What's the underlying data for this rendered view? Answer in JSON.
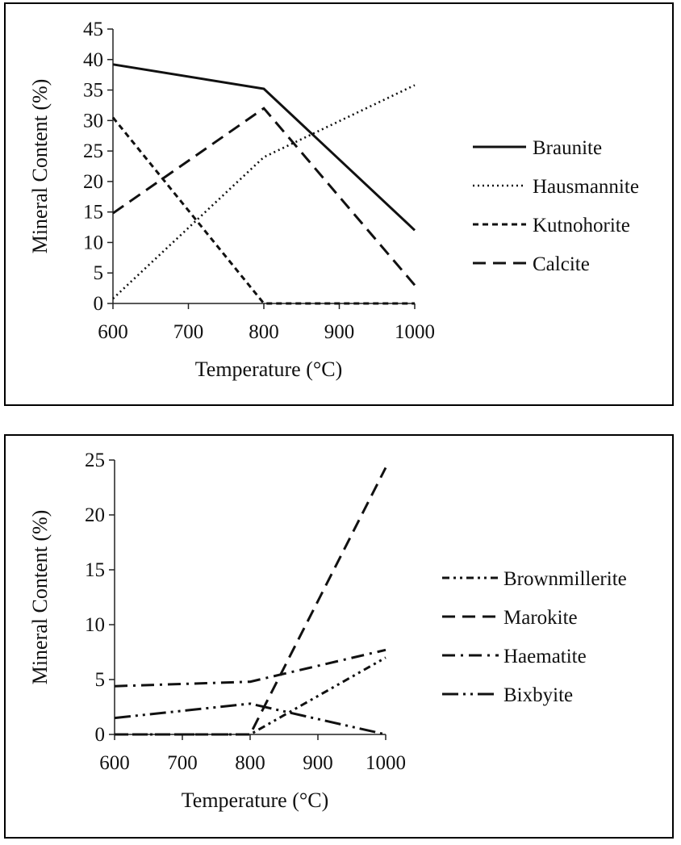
{
  "chart_data": [
    {
      "type": "line",
      "xlabel": "Temperature (°C)",
      "ylabel": "Mineral Content (%)",
      "xlim": [
        600,
        1000
      ],
      "ylim": [
        0,
        45
      ],
      "xticks": [
        600,
        700,
        800,
        900,
        1000
      ],
      "yticks": [
        0,
        5,
        10,
        15,
        20,
        25,
        30,
        35,
        40,
        45
      ],
      "grid": false,
      "legend_position": "right",
      "x": [
        600,
        800,
        1000
      ],
      "series": [
        {
          "name": "Braunite",
          "style": "solid",
          "values": [
            39.2,
            35.2,
            12.0
          ]
        },
        {
          "name": "Hausmannite",
          "style": "dotted",
          "values": [
            0.8,
            24.0,
            35.8
          ]
        },
        {
          "name": "Kutnohorite",
          "style": "short-dash",
          "values": [
            30.5,
            0.0,
            0.0
          ]
        },
        {
          "name": "Calcite",
          "style": "long-dash",
          "values": [
            14.8,
            32.0,
            3.0
          ]
        }
      ]
    },
    {
      "type": "line",
      "xlabel": "Temperature (°C)",
      "ylabel": "Mineral Content (%)",
      "xlim": [
        600,
        1000
      ],
      "ylim": [
        0,
        25
      ],
      "xticks": [
        600,
        700,
        800,
        900,
        1000
      ],
      "yticks": [
        0,
        5,
        10,
        15,
        20,
        25
      ],
      "grid": false,
      "legend_position": "right",
      "x": [
        600,
        800,
        1000
      ],
      "series": [
        {
          "name": "Brownmillerite",
          "style": "dash-dot-dot",
          "values": [
            0.0,
            0.0,
            7.0
          ]
        },
        {
          "name": "Marokite",
          "style": "long-dash",
          "values": [
            0.0,
            0.0,
            24.3
          ]
        },
        {
          "name": "Haematite",
          "style": "dash-dot",
          "values": [
            4.4,
            4.8,
            7.7
          ]
        },
        {
          "name": "Bixbyite",
          "style": "long-dash-dot-dot",
          "values": [
            1.5,
            2.8,
            0.0
          ]
        }
      ]
    }
  ]
}
